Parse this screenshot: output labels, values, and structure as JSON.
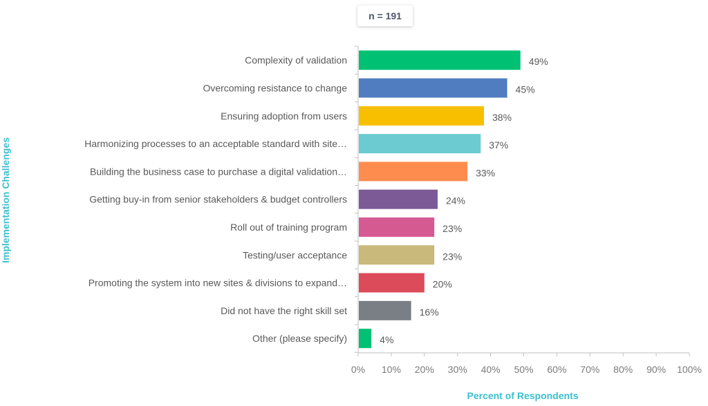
{
  "badge": {
    "text": "n = 191"
  },
  "chart_data": {
    "type": "bar",
    "orientation": "horizontal",
    "xlabel": "Percent of Respondents",
    "ylabel": "Implementation Challenges",
    "xlim": [
      0,
      100
    ],
    "x_ticks": [
      "0%",
      "10%",
      "20%",
      "30%",
      "40%",
      "50%",
      "60%",
      "70%",
      "80%",
      "90%",
      "100%"
    ],
    "grid": false,
    "categories": [
      "Complexity of validation",
      "Overcoming resistance to change",
      "Ensuring adoption from users",
      "Harmonizing processes to an acceptable standard with site…",
      "Building the business case to purchase a digital validation…",
      "Getting buy-in from senior stakeholders & budget controllers",
      "Roll out of training program",
      "Testing/user acceptance",
      "Promoting the system into new sites & divisions to expand…",
      "Did not have the right skill set",
      "Other (please specify)"
    ],
    "values": [
      49,
      45,
      38,
      37,
      33,
      24,
      23,
      23,
      20,
      16,
      4
    ],
    "value_labels": [
      "49%",
      "45%",
      "38%",
      "37%",
      "33%",
      "24%",
      "23%",
      "23%",
      "20%",
      "16%",
      "4%"
    ],
    "colors": [
      "#00c074",
      "#4f7dbf",
      "#f8bf00",
      "#6ccbd0",
      "#ff8c4f",
      "#7c5a96",
      "#d65a92",
      "#c9b97a",
      "#dc4b5a",
      "#7a7f86",
      "#00c074"
    ]
  }
}
